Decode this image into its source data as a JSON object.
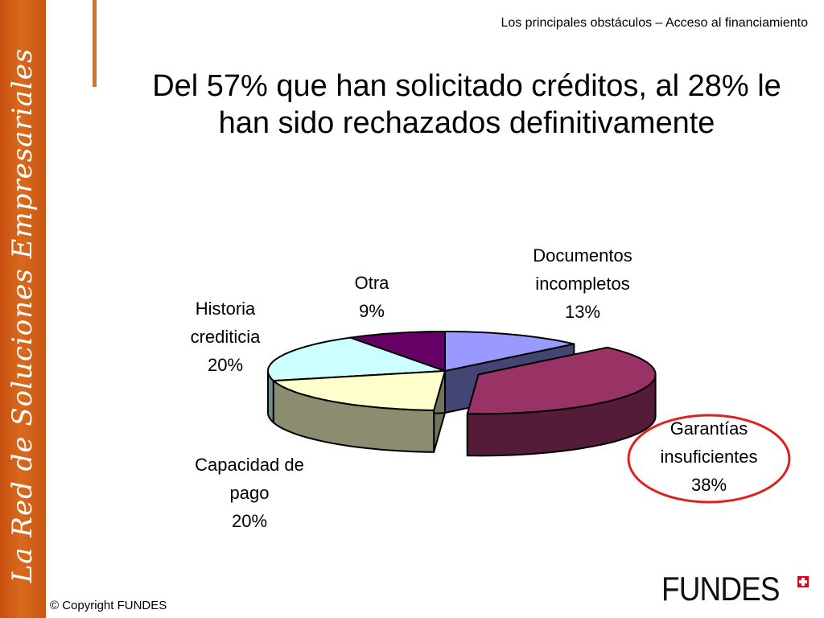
{
  "sidebar": {
    "text": "La Red de Soluciones Empresariales"
  },
  "header": {
    "caption": "Los principales obstáculos – Acceso al financiamiento"
  },
  "title": {
    "text": "Del 57% que han solicitado créditos, al 28% le han sido rechazados definitivamente"
  },
  "chart_data": {
    "type": "pie",
    "style": "3d-exploded",
    "title": "",
    "legend": "none",
    "highlighted": "Garantías insuficientes",
    "slices": [
      {
        "name": "Documentos incompletos",
        "line1": "Documentos",
        "line2": "incompletos",
        "value": 13,
        "value_label": "13%",
        "color": "#9999ff"
      },
      {
        "name": "Garantías insuficientes",
        "line1": "Garantías",
        "line2": "insuficientes",
        "value": 38,
        "value_label": "38%",
        "color": "#993366"
      },
      {
        "name": "Capacidad de pago",
        "line1": "Capacidad de",
        "line2": "pago",
        "value": 20,
        "value_label": "20%",
        "color": "#ffffcc"
      },
      {
        "name": "Historia crediticia",
        "line1": "Historia",
        "line2": "crediticia",
        "value": 20,
        "value_label": "20%",
        "color": "#ccffff"
      },
      {
        "name": "Otra",
        "line1": "Otra",
        "line2": "",
        "value": 9,
        "value_label": "9%",
        "color": "#660066"
      }
    ]
  },
  "footer": {
    "copyright": "© Copyright FUNDES",
    "brand": "FUNDES"
  },
  "colors": {
    "sidebar": "#c84e0f",
    "accent": "#d9731f",
    "highlight_ring": "#e02020"
  }
}
